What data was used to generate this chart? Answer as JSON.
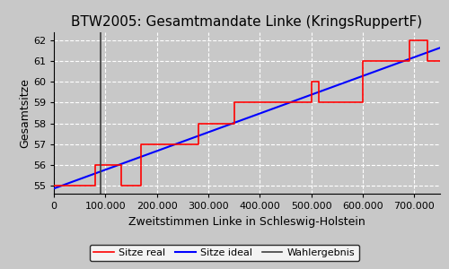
{
  "title": "BTW2005: Gesamtmandate Linke (KringsRuppertF)",
  "xlabel": "Zweitstimmen Linke in Schleswig-Holstein",
  "ylabel": "Gesamtsitze",
  "bg_color": "#c8c8c8",
  "plot_bg_color": "#c8c8c8",
  "ideal_line": {
    "x": [
      0,
      750000
    ],
    "y": [
      54.85,
      61.65
    ],
    "color": "blue",
    "label": "Sitze ideal"
  },
  "step_line": {
    "x": [
      0,
      80000,
      80000,
      130000,
      130000,
      170000,
      170000,
      230000,
      230000,
      280000,
      280000,
      350000,
      350000,
      390000,
      390000,
      500000,
      500000,
      515000,
      515000,
      600000,
      600000,
      640000,
      640000,
      690000,
      690000,
      725000,
      725000,
      750000
    ],
    "y": [
      55,
      55,
      56,
      56,
      55,
      55,
      57,
      57,
      57,
      57,
      58,
      58,
      59,
      59,
      59,
      59,
      60,
      60,
      59,
      59,
      61,
      61,
      61,
      61,
      62,
      62,
      61,
      61
    ],
    "color": "red",
    "label": "Sitze real"
  },
  "wahlergebnis_x": 90000,
  "wahlergebnis_color": "#404040",
  "wahlergebnis_label": "Wahlergebnis",
  "xlim": [
    0,
    750000
  ],
  "ylim": [
    54.6,
    62.4
  ],
  "yticks": [
    55,
    56,
    57,
    58,
    59,
    60,
    61,
    62
  ],
  "xticks": [
    0,
    100000,
    200000,
    300000,
    400000,
    500000,
    600000,
    700000
  ],
  "xtick_labels": [
    "0",
    "100.000",
    "200.000",
    "300.000",
    "400.000",
    "500.000",
    "600.000",
    "700.000"
  ],
  "grid_color": "white",
  "grid_style": "--",
  "title_fontsize": 11,
  "label_fontsize": 9,
  "tick_fontsize": 8
}
